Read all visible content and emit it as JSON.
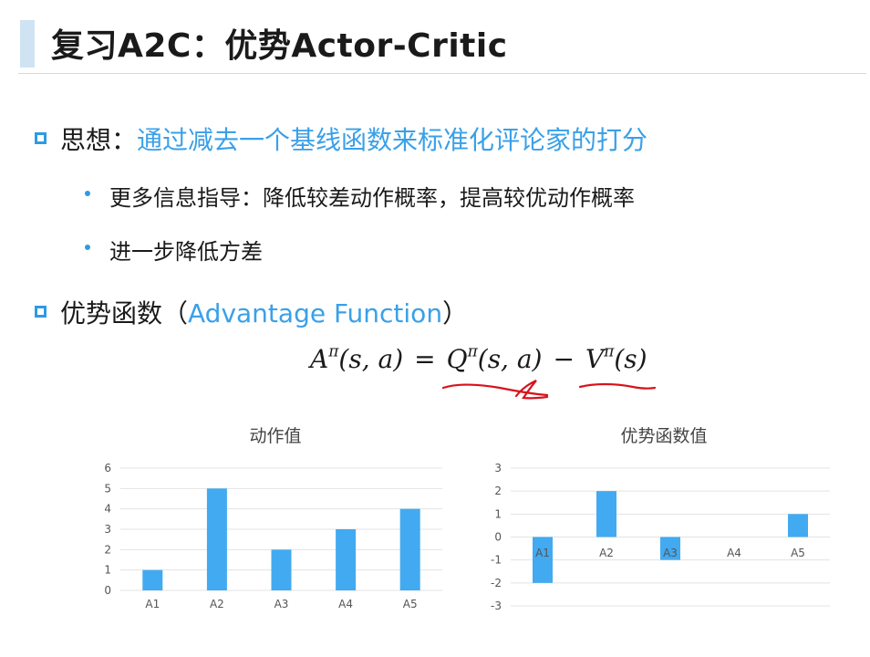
{
  "slide": {
    "title": "复习A2C：优势Actor-Critic",
    "idea_label": "思想：",
    "idea_text": "通过减去一个基线函数来标准化评论家的打分",
    "sub1": "更多信息指导：降低较差动作概率，提高较优动作概率",
    "sub2": "进一步降低方差",
    "adv_label": "优势函数（",
    "adv_english": "Advantage Function",
    "adv_close": "）"
  },
  "formula": {
    "A": "A",
    "Q": "Q",
    "V": "V",
    "pi": "π",
    "args_sa": "(s, a)",
    "args_s": "(s)",
    "eq": "=",
    "minus": "−"
  },
  "colors": {
    "accent": "#3aa0e8",
    "bar": "#42aaf0",
    "annotation": "#d8121c"
  },
  "chart_data": [
    {
      "type": "bar",
      "title": "动作值",
      "categories": [
        "A1",
        "A2",
        "A3",
        "A4",
        "A5"
      ],
      "values": [
        1,
        5,
        2,
        3,
        4
      ],
      "ylim": [
        0,
        6
      ],
      "yticks": [
        0,
        1,
        2,
        3,
        4,
        5,
        6
      ],
      "grid": true
    },
    {
      "type": "bar",
      "title": "优势函数值",
      "categories": [
        "A1",
        "A2",
        "A3",
        "A4",
        "A5"
      ],
      "values": [
        -2,
        2,
        -1,
        0,
        1
      ],
      "ylim": [
        -3,
        3
      ],
      "yticks": [
        -3,
        -2,
        -1,
        0,
        1,
        2,
        3
      ],
      "grid": true
    }
  ]
}
